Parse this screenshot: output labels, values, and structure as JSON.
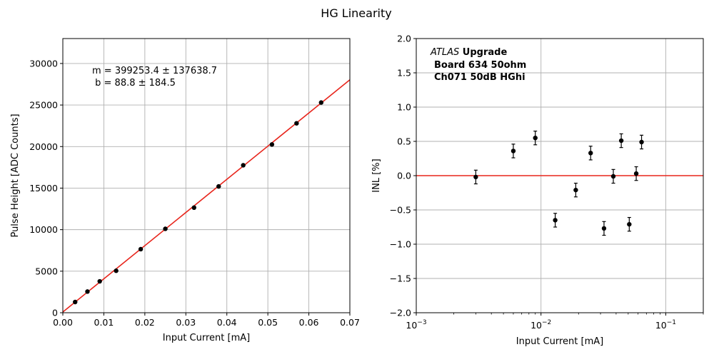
{
  "figure": {
    "title": "HG Linearity"
  },
  "chart_data": [
    {
      "type": "scatter",
      "xlabel": "Input Current [mA]",
      "ylabel": "Pulse Height [ADC Counts]",
      "xlim": [
        0,
        0.07
      ],
      "ylim": [
        0,
        33000
      ],
      "x_ticks": [
        "0.00",
        "0.01",
        "0.02",
        "0.03",
        "0.04",
        "0.05",
        "0.06",
        "0.07"
      ],
      "x_tick_values": [
        0,
        0.01,
        0.02,
        0.03,
        0.04,
        0.05,
        0.06,
        0.07
      ],
      "y_ticks": [
        "0",
        "5000",
        "10000",
        "15000",
        "20000",
        "25000",
        "30000"
      ],
      "y_tick_values": [
        0,
        5000,
        10000,
        15000,
        20000,
        25000,
        30000
      ],
      "grid": true,
      "series": [
        {
          "x": [
            0.003,
            0.006,
            0.009,
            0.013,
            0.019,
            0.025,
            0.032,
            0.038,
            0.044,
            0.051,
            0.057,
            0.063
          ],
          "y": [
            1290,
            2550,
            3780,
            5050,
            7650,
            10100,
            12650,
            15200,
            17750,
            20250,
            22800,
            25300
          ]
        }
      ],
      "fit": {
        "slope": 399253.4,
        "intercept": 88.8,
        "color": "#e8251c"
      },
      "annotations": [
        "m = 399253.4 ± 137638.7",
        " b = 88.8 ± 184.5"
      ]
    },
    {
      "type": "scatter",
      "xlabel": "Input Current [mA]",
      "ylabel": "INL [%]",
      "xscale": "log",
      "xlim": [
        0.001,
        0.2
      ],
      "ylim": [
        -2.0,
        2.0
      ],
      "x_ticks": [
        {
          "base": "10",
          "exp": "−3"
        },
        {
          "base": "10",
          "exp": "−2"
        },
        {
          "base": "10",
          "exp": "−1"
        }
      ],
      "x_tick_values": [
        0.001,
        0.01,
        0.1
      ],
      "y_ticks": [
        "−2.0",
        "−1.5",
        "−1.0",
        "−0.5",
        "0.0",
        "0.5",
        "1.0",
        "1.5",
        "2.0"
      ],
      "y_tick_values": [
        -2.0,
        -1.5,
        -1.0,
        -0.5,
        0.0,
        0.5,
        1.0,
        1.5,
        2.0
      ],
      "grid": true,
      "series": [
        {
          "x": [
            0.003,
            0.006,
            0.009,
            0.013,
            0.019,
            0.025,
            0.032,
            0.038,
            0.044,
            0.051,
            0.058,
            0.064
          ],
          "y": [
            -0.02,
            0.36,
            0.55,
            -0.65,
            -0.21,
            0.33,
            -0.77,
            -0.01,
            0.51,
            -0.71,
            0.03,
            0.49
          ],
          "yerr": [
            0.1,
            0.1,
            0.1,
            0.1,
            0.1,
            0.1,
            0.1,
            0.1,
            0.1,
            0.1,
            0.1,
            0.1
          ]
        }
      ],
      "reference_line": {
        "y": 0.0,
        "color": "#e8251c"
      },
      "annotations": {
        "experiment": "ATLAS",
        "experiment_suffix": " Upgrade",
        "line2": "Board 634 50ohm",
        "line3": "Ch071 50dB HGhi"
      }
    }
  ]
}
